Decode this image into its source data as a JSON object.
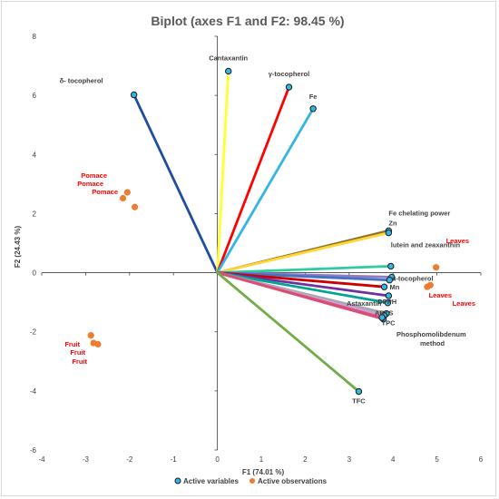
{
  "chart_data": {
    "type": "scatter",
    "subtype": "biplot",
    "title": "Biplot (axes F1 and F2: 98.45 %)",
    "xlabel": "F1 (74.01 %)",
    "ylabel": "F2 (24.43 %)",
    "xlim": [
      -4,
      6
    ],
    "ylim": [
      -6,
      8
    ],
    "x_ticks": [
      -4,
      -3,
      -2,
      -1,
      0,
      1,
      2,
      3,
      4,
      5,
      6
    ],
    "y_ticks": [
      -6,
      -4,
      -2,
      0,
      2,
      4,
      6,
      8
    ],
    "grid": false,
    "legend": {
      "placement": "bottom",
      "entries": [
        "Active variables",
        "Active observations"
      ]
    },
    "variables": [
      {
        "label": "δ- tocopherol",
        "x": -1.9,
        "y": 6.02,
        "color": "#1f4e9c"
      },
      {
        "label": "Cantaxantin",
        "x": 0.25,
        "y": 6.82,
        "color": "#ffff33"
      },
      {
        "label": "γ-tocopherol",
        "x": 1.63,
        "y": 6.28,
        "color": "#ff0000"
      },
      {
        "label": "Fe",
        "x": 2.18,
        "y": 5.55,
        "color": "#33b5e5"
      },
      {
        "label": "Fe chelating power",
        "x": 3.9,
        "y": 1.42,
        "color": "#8b6f2e"
      },
      {
        "label": "Zn",
        "x": 3.9,
        "y": 1.35,
        "color": "#ffd633"
      },
      {
        "label": "lutein and zeaxanthin",
        "x": 3.95,
        "y": 0.22,
        "color": "#2ecc9a"
      },
      {
        "label": "α-tocopherol",
        "x": 3.97,
        "y": -0.15,
        "color": "#8e7cc3"
      },
      {
        "label": "",
        "x": 3.92,
        "y": -0.25,
        "color": "#4472c4"
      },
      {
        "label": "Mn",
        "x": 3.8,
        "y": -0.48,
        "color": "#cc0000"
      },
      {
        "label": "DPPH",
        "x": 3.9,
        "y": -0.78,
        "color": "#7030a0"
      },
      {
        "label": "Astaxantin",
        "x": 3.88,
        "y": -1.02,
        "color": "#00a693"
      },
      {
        "label": "ABTS",
        "x": 3.85,
        "y": -1.38,
        "color": "#a6a6a6"
      },
      {
        "label": "",
        "x": 3.8,
        "y": -1.45,
        "color": "#c9a0dc"
      },
      {
        "label": "TPC",
        "x": 3.78,
        "y": -1.57,
        "color": "#e8457a"
      },
      {
        "label": "Phosphomolibdenum method",
        "x": 3.75,
        "y": -1.52,
        "color": "#d94f70"
      },
      {
        "label": "TFC",
        "x": 3.22,
        "y": -4.02,
        "color": "#70ad47"
      }
    ],
    "observations": [
      {
        "label": "Pomace",
        "x": -2.05,
        "y": 2.72
      },
      {
        "label": "Pomace",
        "x": -2.15,
        "y": 2.52
      },
      {
        "label": "Pomace",
        "x": -1.88,
        "y": 2.22
      },
      {
        "label": "Fruit",
        "x": -2.88,
        "y": -2.12
      },
      {
        "label": "Fruit",
        "x": -2.72,
        "y": -2.42
      },
      {
        "label": "Fruit",
        "x": -2.82,
        "y": -2.38
      },
      {
        "label": "Leaves",
        "x": 4.98,
        "y": 0.18
      },
      {
        "label": "Leaves",
        "x": 4.85,
        "y": -0.42
      },
      {
        "label": "Leaves",
        "x": 4.78,
        "y": -0.48
      }
    ],
    "observation_color": "#ed7d31",
    "variable_marker_color": "#33b5e5"
  }
}
